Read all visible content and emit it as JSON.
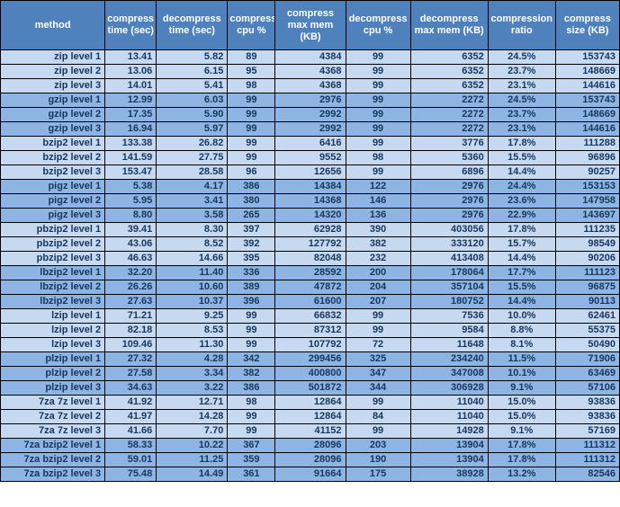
{
  "colors": {
    "header_bg": "#4f81bd",
    "header_text": "#ffffff",
    "band_light": "#c6d9f1",
    "band_dark": "#8db4e2",
    "border": "#000000",
    "text": "#17375d"
  },
  "chart_data": {
    "type": "table",
    "columns": [
      "method",
      "compress time (sec)",
      "decompress time (sec)",
      "compress cpu %",
      "compress max mem (KB)",
      "decompress cpu %",
      "decompress max mem (KB)",
      "compression ratio",
      "compress size (KB)"
    ],
    "rows": [
      {
        "method": "zip level 1",
        "values": [
          "13.41",
          "5.82",
          "89",
          "4384",
          "99",
          "6352",
          "24.5%",
          "153743"
        ]
      },
      {
        "method": "zip level 2",
        "values": [
          "13.06",
          "6.15",
          "95",
          "4368",
          "99",
          "6352",
          "23.7%",
          "148669"
        ]
      },
      {
        "method": "zip level 3",
        "values": [
          "14.01",
          "5.41",
          "98",
          "4368",
          "99",
          "6352",
          "23.1%",
          "144616"
        ]
      },
      {
        "method": "gzip level 1",
        "values": [
          "12.99",
          "6.03",
          "99",
          "2976",
          "99",
          "2272",
          "24.5%",
          "153743"
        ]
      },
      {
        "method": "gzip level 2",
        "values": [
          "17.35",
          "5.90",
          "99",
          "2992",
          "99",
          "2272",
          "23.7%",
          "148669"
        ]
      },
      {
        "method": "gzip level 3",
        "values": [
          "16.94",
          "5.97",
          "99",
          "2992",
          "99",
          "2272",
          "23.1%",
          "144616"
        ]
      },
      {
        "method": "bzip2 level 1",
        "values": [
          "133.38",
          "26.82",
          "99",
          "6416",
          "99",
          "3776",
          "17.8%",
          "111288"
        ]
      },
      {
        "method": "bzip2 level 2",
        "values": [
          "141.59",
          "27.75",
          "99",
          "9552",
          "98",
          "5360",
          "15.5%",
          "96896"
        ]
      },
      {
        "method": "bzip2 level 3",
        "values": [
          "153.47",
          "28.58",
          "96",
          "12656",
          "99",
          "6896",
          "14.4%",
          "90257"
        ]
      },
      {
        "method": "pigz level 1",
        "values": [
          "5.38",
          "4.17",
          "386",
          "14384",
          "122",
          "2976",
          "24.4%",
          "153153"
        ]
      },
      {
        "method": "pigz level 2",
        "values": [
          "5.95",
          "3.41",
          "380",
          "14368",
          "146",
          "2976",
          "23.6%",
          "147958"
        ]
      },
      {
        "method": "pigz level 3",
        "values": [
          "8.80",
          "3.58",
          "265",
          "14320",
          "136",
          "2976",
          "22.9%",
          "143697"
        ]
      },
      {
        "method": "pbzip2 level 1",
        "values": [
          "39.41",
          "8.30",
          "397",
          "62928",
          "390",
          "403056",
          "17.8%",
          "111235"
        ]
      },
      {
        "method": "pbzip2 level 2",
        "values": [
          "43.06",
          "8.52",
          "392",
          "127792",
          "382",
          "333120",
          "15.7%",
          "98549"
        ]
      },
      {
        "method": "pbzip2 level 3",
        "values": [
          "46.63",
          "14.66",
          "395",
          "82048",
          "232",
          "413408",
          "14.4%",
          "90206"
        ]
      },
      {
        "method": "lbzip2 level 1",
        "values": [
          "32.20",
          "11.40",
          "336",
          "28592",
          "200",
          "178064",
          "17.7%",
          "111123"
        ]
      },
      {
        "method": "lbzip2 level 2",
        "values": [
          "26.26",
          "10.60",
          "389",
          "47872",
          "204",
          "357104",
          "15.5%",
          "96875"
        ]
      },
      {
        "method": "lbzip2 level 3",
        "values": [
          "27.63",
          "10.37",
          "396",
          "61600",
          "207",
          "180752",
          "14.4%",
          "90113"
        ]
      },
      {
        "method": "lzip level 1",
        "values": [
          "71.21",
          "9.25",
          "99",
          "66832",
          "99",
          "7536",
          "10.0%",
          "62461"
        ]
      },
      {
        "method": "lzip level 2",
        "values": [
          "82.18",
          "8.53",
          "99",
          "87312",
          "99",
          "9584",
          "8.8%",
          "55375"
        ]
      },
      {
        "method": "lzip level 3",
        "values": [
          "109.46",
          "11.30",
          "99",
          "107792",
          "72",
          "11648",
          "8.1%",
          "50490"
        ]
      },
      {
        "method": "plzip level 1",
        "values": [
          "27.32",
          "4.28",
          "342",
          "299456",
          "325",
          "234240",
          "11.5%",
          "71906"
        ]
      },
      {
        "method": "plzip level 2",
        "values": [
          "27.58",
          "3.34",
          "382",
          "400800",
          "347",
          "347008",
          "10.1%",
          "63469"
        ]
      },
      {
        "method": "plzip level 3",
        "values": [
          "34.63",
          "3.22",
          "386",
          "501872",
          "344",
          "306928",
          "9.1%",
          "57106"
        ]
      },
      {
        "method": "7za 7z level 1",
        "values": [
          "41.92",
          "12.71",
          "98",
          "12864",
          "99",
          "11040",
          "15.0%",
          "93836"
        ]
      },
      {
        "method": "7za 7z level 2",
        "values": [
          "41.97",
          "14.28",
          "99",
          "12864",
          "84",
          "11040",
          "15.0%",
          "93836"
        ]
      },
      {
        "method": "7za 7z level 3",
        "values": [
          "41.66",
          "7.70",
          "99",
          "41152",
          "99",
          "14928",
          "9.1%",
          "57169"
        ]
      },
      {
        "method": "7za bzip2 level 1",
        "values": [
          "58.33",
          "10.22",
          "367",
          "28096",
          "203",
          "13904",
          "17.8%",
          "111312"
        ]
      },
      {
        "method": "7za bzip2 level 2",
        "values": [
          "59.01",
          "11.25",
          "359",
          "28096",
          "190",
          "13904",
          "17.8%",
          "111312"
        ]
      },
      {
        "method": "7za bzip2 level 3",
        "values": [
          "75.48",
          "14.49",
          "361",
          "91664",
          "175",
          "38928",
          "13.2%",
          "82546"
        ]
      }
    ]
  }
}
